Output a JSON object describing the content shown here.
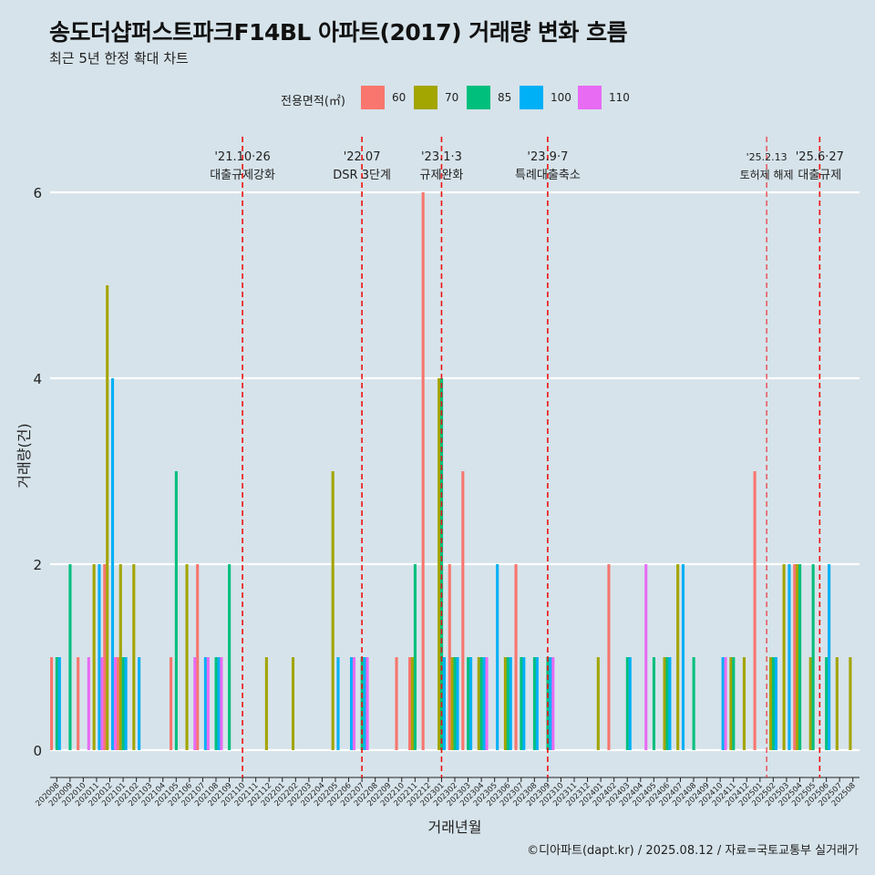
{
  "header": {
    "title": "송도더샵퍼스트파크F14BL 아파트(2017) 거래량 변화 흐름",
    "subtitle": "최근 5년 한정 확대 차트"
  },
  "legend": {
    "title": "전용면적(㎡)",
    "items": [
      {
        "label": "60",
        "color": "#f8766d"
      },
      {
        "label": "70",
        "color": "#a3a500"
      },
      {
        "label": "85",
        "color": "#00bf7d"
      },
      {
        "label": "100",
        "color": "#00b0f6"
      },
      {
        "label": "110",
        "color": "#e76bf3"
      }
    ]
  },
  "caption": "©디아파트(dapt.kr) / 2025.08.12 / 자료=국토교통부 실거래가",
  "chart_data": {
    "type": "bar",
    "xlabel": "거래년월",
    "ylabel": "거래량(건)",
    "ylim": [
      0,
      6
    ],
    "yticks": [
      0,
      2,
      4,
      6
    ],
    "categories": [
      "202008",
      "202009",
      "202010",
      "202011",
      "202012",
      "202101",
      "202102",
      "202103",
      "202104",
      "202105",
      "202106",
      "202107",
      "202108",
      "202109",
      "202110",
      "202111",
      "202112",
      "202201",
      "202202",
      "202203",
      "202204",
      "202205",
      "202206",
      "202207",
      "202208",
      "202209",
      "202210",
      "202211",
      "202212",
      "202301",
      "202302",
      "202303",
      "202304",
      "202305",
      "202306",
      "202307",
      "202308",
      "202309",
      "202310",
      "202311",
      "202312",
      "202401",
      "202402",
      "202403",
      "202404",
      "202405",
      "202406",
      "202407",
      "202408",
      "202409",
      "202410",
      "202411",
      "202412",
      "202501",
      "202502",
      "202503",
      "202504",
      "202505",
      "202506",
      "202507",
      "202508"
    ],
    "series": [
      {
        "name": "60",
        "values": [
          1,
          0,
          1,
          0,
          2,
          1,
          0,
          0,
          0,
          1,
          0,
          2,
          0,
          0,
          0,
          0,
          0,
          0,
          0,
          0,
          0,
          0,
          0,
          0,
          0,
          0,
          1,
          1,
          6,
          0,
          2,
          3,
          0,
          0,
          0,
          2,
          0,
          0,
          0,
          0,
          0,
          0,
          2,
          0,
          0,
          0,
          0,
          0,
          0,
          0,
          0,
          0,
          0,
          3,
          0,
          0,
          2,
          0,
          0,
          0,
          0
        ]
      },
      {
        "name": "70",
        "values": [
          0,
          0,
          0,
          2,
          5,
          2,
          2,
          0,
          0,
          0,
          2,
          0,
          0,
          0,
          0,
          0,
          1,
          0,
          1,
          0,
          0,
          3,
          0,
          0,
          0,
          0,
          0,
          1,
          0,
          4,
          1,
          0,
          1,
          0,
          1,
          0,
          0,
          0,
          0,
          0,
          0,
          1,
          0,
          0,
          0,
          0,
          1,
          2,
          0,
          0,
          0,
          1,
          1,
          0,
          1,
          2,
          2,
          1,
          0,
          1,
          1
        ]
      },
      {
        "name": "85",
        "values": [
          1,
          2,
          0,
          0,
          0,
          1,
          0,
          0,
          0,
          3,
          0,
          0,
          1,
          2,
          0,
          0,
          0,
          0,
          0,
          0,
          0,
          0,
          0,
          1,
          0,
          0,
          0,
          2,
          0,
          4,
          1,
          1,
          1,
          0,
          1,
          1,
          1,
          1,
          0,
          0,
          0,
          0,
          0,
          1,
          0,
          1,
          1,
          0,
          1,
          0,
          0,
          1,
          0,
          0,
          1,
          0,
          2,
          2,
          1,
          0,
          0
        ]
      },
      {
        "name": "100",
        "values": [
          1,
          0,
          0,
          2,
          4,
          1,
          1,
          0,
          0,
          0,
          0,
          1,
          1,
          0,
          0,
          0,
          0,
          0,
          0,
          0,
          0,
          1,
          1,
          1,
          0,
          0,
          0,
          0,
          0,
          1,
          1,
          1,
          1,
          2,
          1,
          1,
          1,
          1,
          0,
          0,
          0,
          0,
          0,
          1,
          0,
          0,
          1,
          2,
          0,
          0,
          1,
          0,
          0,
          0,
          1,
          2,
          0,
          0,
          2,
          0,
          0
        ]
      },
      {
        "name": "110",
        "values": [
          0,
          0,
          1,
          1,
          1,
          0,
          0,
          0,
          0,
          0,
          1,
          1,
          1,
          0,
          0,
          0,
          0,
          0,
          0,
          0,
          0,
          0,
          1,
          1,
          0,
          0,
          0,
          0,
          0,
          0,
          0,
          0,
          1,
          0,
          0,
          0,
          0,
          1,
          0,
          0,
          0,
          0,
          0,
          0,
          2,
          0,
          0,
          0,
          0,
          0,
          1,
          0,
          0,
          0,
          0,
          0,
          0,
          0,
          0,
          0,
          0
        ]
      }
    ],
    "events": [
      {
        "pos": 14.5,
        "date": "'21.10·26",
        "label": "대출규제강화"
      },
      {
        "pos": 23.5,
        "date": "'22.07",
        "label": "DSR 3단계"
      },
      {
        "pos": 29.5,
        "date": "'23.1·3",
        "label": "규제완화"
      },
      {
        "pos": 37.5,
        "date": "'23.9·7",
        "label": "특례대출축소"
      },
      {
        "pos": 54.0,
        "date": "'25.2.13",
        "label": "토허제 해제"
      },
      {
        "pos": 58.0,
        "date": "'25.6·27",
        "label": "대출규제"
      }
    ],
    "grid": true,
    "legend_position": "top"
  }
}
